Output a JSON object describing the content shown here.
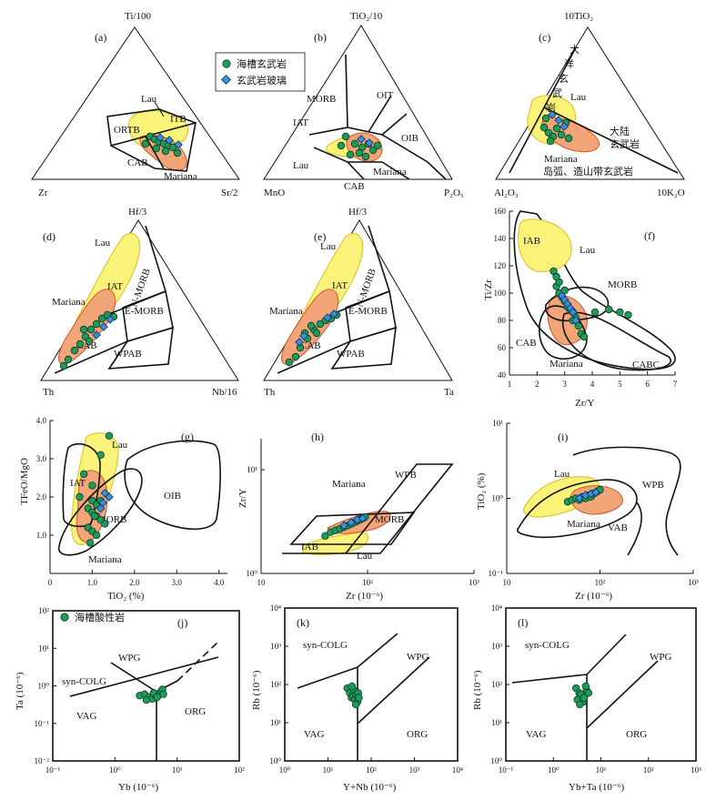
{
  "figure": {
    "legend": {
      "basalt": "海槽玄武岩",
      "glass": "玄武岩玻璃",
      "acid": "海槽酸性岩"
    },
    "colors": {
      "dot": "#1f9a5a",
      "dot_stroke": "#0b3d22",
      "diamond": "#3a8fd6",
      "diamond_stroke": "#0b3160",
      "lau_fill": "#fbf27a",
      "lau_stroke": "#d6c21a",
      "mariana_fill": "#f3a57a",
      "mariana_stroke": "#d0552a"
    }
  },
  "panels": {
    "a": {
      "tag": "(a)",
      "apex_top": "Ti/100",
      "apex_left": "Zr",
      "apex_right": "Sr/2",
      "fields": [
        "Lau",
        "ITB",
        "ORTB",
        "CAB",
        "Mariana"
      ]
    },
    "b": {
      "tag": "(b)",
      "apex_top": "TiO₂/10",
      "apex_left": "MnO",
      "apex_right": "P₂O₅",
      "fields": [
        "MORB",
        "OIT",
        "IAT",
        "OIB",
        "Lau",
        "CAB",
        "Mariana"
      ]
    },
    "c": {
      "tag": "(c)",
      "apex_top": "10TiO₂",
      "apex_left": "Al₂O₃",
      "apex_right": "10K₂O",
      "fields": [
        "Lau",
        "Mariana"
      ],
      "ocean_chars": [
        "大",
        "洋",
        "玄",
        "武",
        "岩"
      ],
      "continental": [
        "大陆",
        "玄武岩"
      ],
      "arc": "岛弧、造山带玄武岩"
    },
    "d": {
      "tag": "(d)",
      "apex_top": "Hf/3",
      "apex_left": "Th",
      "apex_right": "Nb/16",
      "fields": [
        "Lau",
        "IAT",
        "N-MORB",
        "Mariana",
        "E-MORB",
        "CAB",
        "WPAB"
      ]
    },
    "e": {
      "tag": "(e)",
      "apex_top": "Hf/3",
      "apex_left": "Th",
      "apex_right": "Ta",
      "fields": [
        "Lau",
        "IAT",
        "N-MORB",
        "Mariana",
        "E-MORB",
        "CAB",
        "WPAB"
      ]
    },
    "f": {
      "tag": "(f)",
      "xlabel": "Zr/Y",
      "ylabel": "Ti/Zr",
      "xticks": [
        "1",
        "2",
        "3",
        "4",
        "5",
        "6",
        "7"
      ],
      "yticks": [
        "40",
        "60",
        "80",
        "100",
        "120",
        "140",
        "160"
      ],
      "fields": [
        "IAB",
        "Lau",
        "MORB",
        "CAB",
        "Mariana",
        "CABC"
      ]
    },
    "g": {
      "tag": "(g)",
      "xlabel": "TiO₂ (%)",
      "ylabel": "TFeO/MgO",
      "xticks": [
        "0",
        "1.0",
        "2.0",
        "3.0",
        "4.0"
      ],
      "yticks": [
        "1.0",
        "2.0",
        "3.0",
        "4.0"
      ],
      "fields": [
        "Lau",
        "IAT",
        "OIB",
        "MORB",
        "Mariana"
      ]
    },
    "h": {
      "tag": "(h)",
      "xlabel": "Zr (10⁻⁶)",
      "ylabel": "Zr/Y",
      "xticks": [
        "10",
        "10²",
        "10³"
      ],
      "yticks": [
        "10⁰",
        "10¹"
      ],
      "fields": [
        "WPB",
        "Mariana",
        "MORB",
        "IAB",
        "Lau"
      ]
    },
    "i": {
      "tag": "(i)",
      "xlabel": "Zr (10⁻⁶)",
      "ylabel": "TiO₂ (%)",
      "xticks": [
        "10",
        "10²",
        "10³"
      ],
      "yticks": [
        "10⁻¹",
        "10⁰",
        "10¹"
      ],
      "fields": [
        "Lau",
        "WPB",
        "Mariana",
        "VAB"
      ]
    },
    "j": {
      "tag": "(j)",
      "xlabel": "Yb (10⁻⁶)",
      "ylabel": "Ta (10⁻⁶)",
      "xticks": [
        "10⁻¹",
        "10⁰",
        "10¹",
        "10²"
      ],
      "yticks": [
        "10⁻²",
        "10⁻¹",
        "10⁰",
        "10¹",
        "10²"
      ],
      "fields": [
        "WPG",
        "syn-COLG",
        "VAG",
        "ORG"
      ]
    },
    "k": {
      "tag": "(k)",
      "xlabel": "Y+Nb (10⁻⁶)",
      "ylabel": "Rb (10⁻⁶)",
      "xticks": [
        "10⁰",
        "10¹",
        "10²",
        "10³",
        "10⁴"
      ],
      "yticks": [
        "10⁰",
        "10¹",
        "10²",
        "10³",
        "10⁴"
      ],
      "fields": [
        "syn-COLG",
        "WPG",
        "VAG",
        "ORG"
      ]
    },
    "l": {
      "tag": "(l)",
      "xlabel": "Yb+Ta (10⁻⁶)",
      "ylabel": "Rb (10⁻⁶)",
      "xticks": [
        "10⁻¹",
        "10⁰",
        "10¹",
        "10²",
        "10³"
      ],
      "yticks": [
        "10⁰",
        "10¹",
        "10²",
        "10³",
        "10⁴"
      ],
      "fields": [
        "syn-COLG",
        "WPG",
        "VAG",
        "ORG"
      ]
    }
  },
  "chart_data": [
    {
      "panel": "f",
      "type": "scatter",
      "xlabel": "Zr/Y",
      "ylabel": "Ti/Zr",
      "xlim": [
        1,
        7
      ],
      "ylim": [
        40,
        160
      ],
      "series": [
        {
          "name": "海槽玄武岩",
          "x": [
            2.6,
            2.7,
            2.8,
            2.9,
            3.0,
            3.1,
            3.2,
            3.3,
            3.4,
            2.8,
            3.0,
            3.5,
            3.6,
            4.1,
            4.6,
            5.0,
            5.3,
            2.7,
            3.3,
            3.7
          ],
          "y": [
            116,
            105,
            100,
            97,
            94,
            90,
            88,
            86,
            82,
            108,
            102,
            76,
            70,
            86,
            88,
            86,
            84,
            112,
            80,
            68
          ]
        },
        {
          "name": "玄武岩玻璃",
          "x": [
            2.9,
            3.0,
            3.1,
            3.2,
            3.3,
            3.4
          ],
          "y": [
            98,
            95,
            92,
            89,
            86,
            80
          ]
        }
      ]
    },
    {
      "panel": "g",
      "type": "scatter",
      "xlabel": "TiO₂ (%)",
      "ylabel": "TFeO/MgO",
      "xlim": [
        0,
        4.0
      ],
      "ylim": [
        0,
        4.0
      ],
      "series": [
        {
          "name": "海槽玄武岩",
          "x": [
            1.4,
            1.2,
            0.8,
            0.7,
            1.0,
            1.0,
            1.1,
            0.9,
            1.0,
            1.1,
            1.2,
            1.3,
            0.9,
            1.0,
            1.1,
            0.95,
            1.05,
            1.2
          ],
          "y": [
            3.6,
            3.1,
            2.6,
            2.0,
            2.3,
            1.9,
            1.8,
            1.7,
            1.6,
            1.5,
            1.4,
            1.3,
            1.2,
            1.1,
            1.0,
            0.8,
            1.5,
            1.9
          ]
        },
        {
          "name": "玄武岩玻璃",
          "x": [
            1.3,
            1.4,
            1.2,
            1.25
          ],
          "y": [
            2.1,
            2.0,
            1.7,
            1.85
          ]
        }
      ]
    },
    {
      "panel": "h",
      "type": "scatter",
      "xlabel": "Zr (10⁻⁶)",
      "ylabel": "Zr/Y",
      "xlim": [
        10,
        1000
      ],
      "ylim": [
        1,
        20
      ],
      "scale": "log-log",
      "series": [
        {
          "name": "海槽玄武岩",
          "x": [
            40,
            45,
            50,
            55,
            60,
            65,
            70,
            75,
            80,
            85,
            90,
            95
          ],
          "y": [
            2.3,
            2.5,
            2.6,
            2.7,
            2.8,
            2.9,
            3.0,
            3.1,
            3.2,
            3.3,
            3.4,
            3.5
          ]
        },
        {
          "name": "玄武岩玻璃",
          "x": [
            60,
            70,
            80,
            90
          ],
          "y": [
            2.9,
            3.1,
            3.3,
            3.4
          ]
        }
      ]
    },
    {
      "panel": "i",
      "type": "scatter",
      "xlabel": "Zr (10⁻⁶)",
      "ylabel": "TiO₂ (%)",
      "xlim": [
        10,
        1000
      ],
      "ylim": [
        0.1,
        10
      ],
      "scale": "log-log",
      "series": [
        {
          "name": "海槽玄武岩",
          "x": [
            45,
            50,
            55,
            60,
            65,
            70,
            75,
            80,
            85,
            90,
            95,
            100
          ],
          "y": [
            0.9,
            0.95,
            1.0,
            0.95,
            1.05,
            1.0,
            1.1,
            1.05,
            1.15,
            1.2,
            1.25,
            1.3
          ]
        },
        {
          "name": "玄武岩玻璃",
          "x": [
            60,
            70,
            80,
            90
          ],
          "y": [
            1.0,
            1.1,
            1.15,
            1.2
          ]
        }
      ]
    },
    {
      "panel": "j",
      "type": "scatter",
      "xlabel": "Yb (10⁻⁶)",
      "ylabel": "Ta (10⁻⁶)",
      "xlim": [
        0.1,
        100
      ],
      "ylim": [
        0.01,
        100
      ],
      "scale": "log-log",
      "series": [
        {
          "name": "海槽酸性岩",
          "x": [
            2.5,
            3.0,
            3.5,
            4.0,
            4.5,
            5.0,
            5.5,
            3.2,
            4.2,
            5.8,
            6.0,
            4.8
          ],
          "y": [
            0.55,
            0.6,
            0.5,
            0.45,
            0.55,
            0.6,
            0.7,
            0.42,
            0.65,
            0.8,
            0.6,
            0.5
          ]
        }
      ]
    },
    {
      "panel": "k",
      "type": "scatter",
      "xlabel": "Y+Nb (10⁻⁶)",
      "ylabel": "Rb (10⁻⁶)",
      "xlim": [
        1,
        10000
      ],
      "ylim": [
        1,
        10000
      ],
      "scale": "log-log",
      "series": [
        {
          "name": "海槽酸性岩",
          "x": [
            28,
            32,
            35,
            38,
            40,
            42,
            45,
            48,
            50,
            36,
            44,
            52
          ],
          "y": [
            80,
            60,
            45,
            50,
            70,
            40,
            55,
            35,
            60,
            90,
            30,
            45
          ]
        }
      ]
    },
    {
      "panel": "l",
      "type": "scatter",
      "xlabel": "Yb+Ta (10⁻⁶)",
      "ylabel": "Rb (10⁻⁶)",
      "xlim": [
        0.1,
        1000
      ],
      "ylim": [
        1,
        10000
      ],
      "scale": "log-log",
      "series": [
        {
          "name": "海槽酸性岩",
          "x": [
            3.0,
            3.5,
            4.0,
            4.5,
            5.0,
            3.2,
            3.8,
            4.2,
            5.5,
            4.8,
            3.6,
            4.4
          ],
          "y": [
            80,
            60,
            45,
            50,
            70,
            40,
            55,
            35,
            60,
            90,
            30,
            45
          ]
        }
      ]
    }
  ]
}
